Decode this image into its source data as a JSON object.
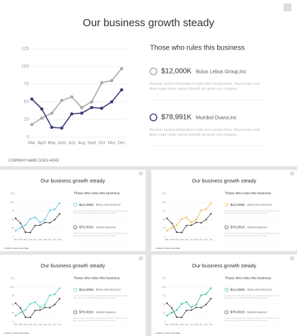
{
  "chart_data": [
    {
      "type": "line",
      "title": "Our business growth steady",
      "categories": [
        "Mar",
        "April",
        "May",
        "June",
        "July",
        "Aug",
        "Sept",
        "Oct",
        "Nov",
        "Dec"
      ],
      "series": [
        {
          "name": "Bulus Lebus Group,Inc",
          "color": "#aaaaaa",
          "total": "$12,000K",
          "description": "Aenean lacinia bibendum nulla sed consectetur. Maecenas sed diam eget risus varius blandit sit amet non magna.",
          "values": [
            18,
            27,
            34,
            52,
            57,
            42,
            50,
            77,
            80,
            97
          ]
        },
        {
          "name": "Mumbul Duwur,inc",
          "color": "#3d3f7c",
          "total": "$78,991K",
          "description": "Aenean lacinia bibendum nulla sed consectetur. Maecenas sed diam eget risus varius blandit sit amet non magna.",
          "values": [
            54,
            40,
            14,
            13,
            33,
            34,
            42,
            41,
            50,
            67
          ]
        }
      ],
      "ylim": [
        0,
        125
      ],
      "yticks": [
        0,
        25,
        50,
        75,
        100,
        125
      ],
      "grid": true,
      "panel_title": "Those who rules this business",
      "footer": "COMPANY NAME GOES HERE"
    },
    {
      "type": "line",
      "title": "Our business growth steady",
      "categories": [
        "Mar",
        "April",
        "May",
        "June",
        "July",
        "Aug",
        "Sept",
        "Oct",
        "Nov",
        "Dec"
      ],
      "series": [
        {
          "name": "Bulus Lebus Group,Inc",
          "color": "#4fc6e0",
          "total": "$12,000K",
          "description": "Aenean lacinia bibendum nulla sed consectetur. Maecenas sed diam eget risus varius blandit sit amet non magna.",
          "values": [
            18,
            27,
            34,
            52,
            57,
            42,
            50,
            77,
            80,
            97
          ]
        },
        {
          "name": "Mumbul Duwur,inc",
          "color": "#444444",
          "total": "$78,991K",
          "description": "Aenean lacinia bibendum nulla sed consectetur. Maecenas sed diam eget risus varius blandit sit amet non magna.",
          "values": [
            54,
            40,
            14,
            13,
            33,
            34,
            42,
            41,
            50,
            67
          ]
        }
      ],
      "ylim": [
        0,
        125
      ],
      "yticks": [
        0,
        25,
        50,
        75,
        100,
        125
      ],
      "grid": true,
      "panel_title": "Those who rules this business",
      "footer": "COMPANY NAME GOES HERE"
    },
    {
      "type": "line",
      "title": "Our business growth steady",
      "categories": [
        "Mar",
        "April",
        "May",
        "June",
        "July",
        "Aug",
        "Sept",
        "Oct",
        "Nov",
        "Dec"
      ],
      "series": [
        {
          "name": "Bulus Lebus Group,Inc",
          "color": "#f0b444",
          "total": "$12,000K",
          "description": "Aenean lacinia bibendum nulla sed consectetur. Maecenas sed diam eget risus varius blandit sit amet non magna.",
          "values": [
            18,
            27,
            34,
            52,
            57,
            42,
            50,
            77,
            80,
            97
          ]
        },
        {
          "name": "Mumbul Duwur,inc",
          "color": "#444444",
          "total": "$78,991K",
          "description": "Aenean lacinia bibendum nulla sed consectetur. Maecenas sed diam eget risus varius blandit sit amet non magna.",
          "values": [
            54,
            40,
            14,
            13,
            33,
            34,
            42,
            41,
            50,
            67
          ]
        }
      ],
      "ylim": [
        0,
        125
      ],
      "yticks": [
        0,
        25,
        50,
        75,
        100,
        125
      ],
      "grid": true,
      "panel_title": "Those who rules this business",
      "footer": "COMPANY NAME GOES HERE"
    },
    {
      "type": "line",
      "title": "Our business growth steady",
      "categories": [
        "Mar",
        "April",
        "May",
        "June",
        "July",
        "Aug",
        "Sept",
        "Oct",
        "Nov",
        "Dec"
      ],
      "series": [
        {
          "name": "Bulus Lebus Group,Inc",
          "color": "#4ccdc4",
          "total": "$12,000K",
          "description": "Aenean lacinia bibendum nulla sed consectetur. Maecenas sed diam eget risus varius blandit sit amet non magna.",
          "values": [
            18,
            27,
            34,
            52,
            57,
            42,
            50,
            77,
            80,
            97
          ]
        },
        {
          "name": "Mumbul Duwur,inc",
          "color": "#444444",
          "total": "$78,991K",
          "description": "Aenean lacinia bibendum nulla sed consectetur. Maecenas sed diam eget risus varius blandit sit amet non magna.",
          "values": [
            54,
            40,
            14,
            13,
            33,
            34,
            42,
            41,
            50,
            67
          ]
        }
      ],
      "ylim": [
        0,
        125
      ],
      "yticks": [
        0,
        25,
        50,
        75,
        100,
        125
      ],
      "grid": true,
      "panel_title": "Those who rules this business",
      "footer": "COMPANY NAME GOES HERE"
    },
    {
      "type": "line",
      "title": "Our business growth steady",
      "categories": [
        "Mar",
        "April",
        "May",
        "June",
        "July",
        "Aug",
        "Sept",
        "Oct",
        "Nov",
        "Dec"
      ],
      "series": [
        {
          "name": "Bulus Lebus Group,Inc",
          "color": "#2bb9a9",
          "total": "$12,000K",
          "description": "Aenean lacinia bibendum nulla sed consectetur. Maecenas sed diam eget risus varius blandit sit amet non magna.",
          "values": [
            18,
            27,
            34,
            52,
            57,
            42,
            50,
            77,
            80,
            97
          ]
        },
        {
          "name": "Mumbul Duwur,inc",
          "color": "#444444",
          "total": "$78,991K",
          "description": "Aenean lacinia bibendum nulla sed consectetur. Maecenas sed diam eget risus varius blandit sit amet non magna.",
          "values": [
            54,
            40,
            14,
            13,
            33,
            34,
            42,
            41,
            50,
            67
          ]
        }
      ],
      "ylim": [
        0,
        125
      ],
      "yticks": [
        0,
        25,
        50,
        75,
        100,
        125
      ],
      "grid": true,
      "panel_title": "Those who rules this business",
      "footer": "COMPANY NAME GOES HERE"
    }
  ]
}
